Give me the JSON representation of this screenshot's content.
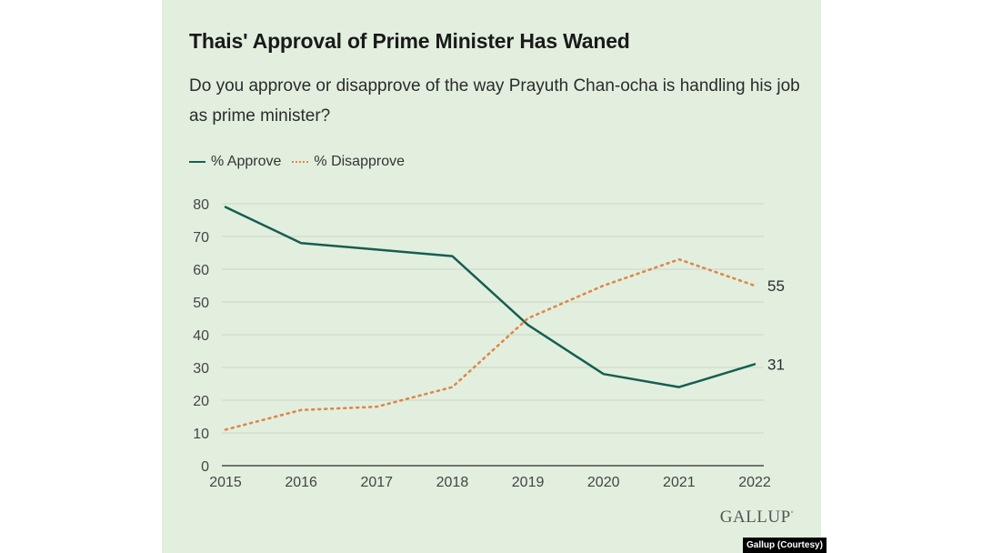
{
  "title": "Thais' Approval of Prime Minister Has Waned",
  "subtitle": "Do you approve or disapprove of the way Prayuth Chan-ocha is handling his job as prime minister?",
  "legend": {
    "approve": "% Approve",
    "disapprove": "% Disapprove"
  },
  "colors": {
    "approve": "#165e52",
    "disapprove": "#e0864a",
    "panel_bg": "#e2efdf",
    "grid": "#c9d6c6"
  },
  "logo": {
    "text": "GALLUP",
    "mark": "°"
  },
  "credit": "Gallup (Courtesy)",
  "chart_data": {
    "type": "line",
    "title": "Thais' Approval of Prime Minister Has Waned",
    "x": [
      2015,
      2016,
      2017,
      2018,
      2019,
      2020,
      2021,
      2022
    ],
    "x_ticks": [
      "2015",
      "2016",
      "2017",
      "2018",
      "2019",
      "2020",
      "2021",
      "2022"
    ],
    "y_ticks": [
      "0",
      "10",
      "20",
      "30",
      "40",
      "50",
      "60",
      "70",
      "80"
    ],
    "ylim": [
      0,
      80
    ],
    "grid": true,
    "legend_position": "top-left",
    "series": [
      {
        "name": "% Approve",
        "values": [
          79,
          68,
          66,
          64,
          43,
          28,
          24,
          31
        ],
        "style": "solid",
        "end_label": "31"
      },
      {
        "name": "% Disapprove",
        "values": [
          11,
          17,
          18,
          24,
          45,
          55,
          63,
          55
        ],
        "style": "dotted",
        "end_label": "55"
      }
    ]
  }
}
